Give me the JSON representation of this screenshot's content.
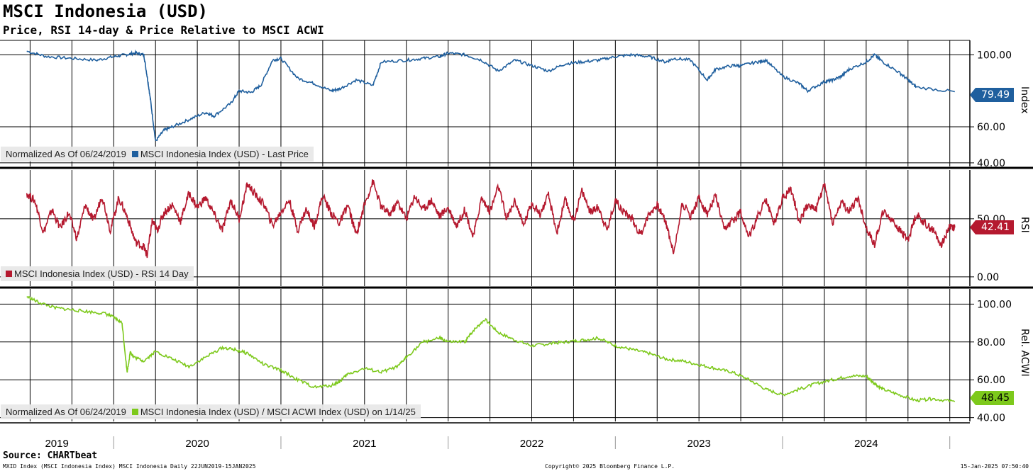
{
  "title": "MSCI Indonesia (USD)",
  "subtitle": "Price, RSI 14-day & Price Relative to MSCI ACWI",
  "source": "Source: CHARTbeat",
  "footer": {
    "left": "MXID Index (MSCI Indonesia Index) MSCI Indonesia  Daily 22JUN2019-15JAN2025",
    "center": "Copyright© 2025 Bloomberg Finance L.P.",
    "right": "15-Jan-2025 07:50:40"
  },
  "colors": {
    "price": "#1f5f9e",
    "rsi": "#b5192f",
    "rel": "#7dc91c",
    "grid": "#000000"
  },
  "chart_data": [
    {
      "type": "line",
      "panel": "price",
      "axis_title": "Index",
      "ylim": [
        38,
        108
      ],
      "yticks": [
        "100.00",
        "60.00",
        "40.00"
      ],
      "ytick_values": [
        100,
        60,
        40
      ],
      "legend": {
        "prefix": "Normalized As Of 06/24/2019",
        "series_label": "MSCI Indonesia Index (USD) - Last Price"
      },
      "last_value_label": "79.49",
      "series": [
        {
          "name": "MSCI Indonesia Index (USD) - Last Price",
          "x": [
            2019.48,
            2019.6,
            2019.75,
            2019.9,
            2020.0,
            2020.07,
            2020.13,
            2020.18,
            2020.2,
            2020.22,
            2020.25,
            2020.3,
            2020.35,
            2020.45,
            2020.55,
            2020.6,
            2020.7,
            2020.75,
            2020.82,
            2020.88,
            2020.95,
            2021.0,
            2021.1,
            2021.2,
            2021.3,
            2021.35,
            2021.45,
            2021.55,
            2021.6,
            2021.75,
            2021.85,
            2021.95,
            2022.0,
            2022.1,
            2022.2,
            2022.3,
            2022.4,
            2022.5,
            2022.6,
            2022.7,
            2022.8,
            2022.9,
            2023.0,
            2023.1,
            2023.2,
            2023.3,
            2023.35,
            2023.45,
            2023.55,
            2023.6,
            2023.7,
            2023.75,
            2023.85,
            2023.9,
            2024.0,
            2024.1,
            2024.15,
            2024.25,
            2024.3,
            2024.35,
            2024.4,
            2024.5,
            2024.55,
            2024.6,
            2024.7,
            2024.75,
            2024.8,
            2025.03
          ],
          "values": [
            102,
            99,
            98,
            97,
            99,
            100,
            101,
            100,
            88,
            75,
            52,
            58,
            60,
            64,
            68,
            66,
            73,
            80,
            79,
            83,
            97,
            98,
            87,
            84,
            80,
            81,
            86,
            83,
            96,
            97,
            98,
            99,
            101,
            100,
            97,
            91,
            97,
            94,
            91,
            95,
            96,
            97,
            99,
            100,
            99,
            96,
            98,
            97,
            86,
            92,
            94,
            94,
            96,
            97,
            88,
            84,
            80,
            85,
            86,
            88,
            92,
            96,
            100,
            96,
            90,
            86,
            82,
            79.49
          ]
        }
      ]
    },
    {
      "type": "line",
      "panel": "rsi",
      "axis_title": "RSI",
      "ylim": [
        -8,
        92
      ],
      "yticks": [
        "50.00",
        "0.00"
      ],
      "ytick_values": [
        50,
        0
      ],
      "legend": {
        "prefix": "",
        "series_label": "MSCI Indonesia Index (USD) - RSI 14 Day"
      },
      "last_value_label": "42.41",
      "series": [
        {
          "name": "MSCI Indonesia Index (USD) - RSI 14 Day",
          "x": [
            2019.48,
            2019.53,
            2019.58,
            2019.63,
            2019.68,
            2019.73,
            2019.78,
            2019.83,
            2019.88,
            2019.93,
            2019.98,
            2020.03,
            2020.08,
            2020.13,
            2020.18,
            2020.2,
            2020.23,
            2020.26,
            2020.3,
            2020.35,
            2020.4,
            2020.45,
            2020.5,
            2020.55,
            2020.6,
            2020.65,
            2020.7,
            2020.75,
            2020.8,
            2020.85,
            2020.9,
            2020.95,
            2021.0,
            2021.05,
            2021.1,
            2021.15,
            2021.2,
            2021.25,
            2021.3,
            2021.35,
            2021.4,
            2021.45,
            2021.5,
            2021.55,
            2021.6,
            2021.65,
            2021.7,
            2021.75,
            2021.8,
            2021.85,
            2021.9,
            2021.95,
            2022.0,
            2022.05,
            2022.1,
            2022.15,
            2022.2,
            2022.25,
            2022.3,
            2022.35,
            2022.4,
            2022.45,
            2022.5,
            2022.55,
            2022.6,
            2022.65,
            2022.7,
            2022.75,
            2022.8,
            2022.85,
            2022.9,
            2022.95,
            2023.0,
            2023.05,
            2023.1,
            2023.15,
            2023.2,
            2023.25,
            2023.3,
            2023.35,
            2023.4,
            2023.45,
            2023.5,
            2023.55,
            2023.6,
            2023.65,
            2023.7,
            2023.75,
            2023.8,
            2023.85,
            2023.9,
            2023.95,
            2024.0,
            2024.05,
            2024.1,
            2024.15,
            2024.2,
            2024.25,
            2024.3,
            2024.35,
            2024.4,
            2024.45,
            2024.5,
            2024.55,
            2024.6,
            2024.65,
            2024.7,
            2024.75,
            2024.8,
            2024.85,
            2024.9,
            2024.95,
            2025.0,
            2025.03
          ],
          "values": [
            72,
            65,
            38,
            58,
            42,
            55,
            33,
            62,
            48,
            70,
            40,
            68,
            52,
            30,
            26,
            18,
            48,
            40,
            55,
            62,
            48,
            72,
            60,
            68,
            54,
            40,
            66,
            50,
            80,
            70,
            62,
            44,
            56,
            66,
            40,
            58,
            44,
            70,
            55,
            46,
            62,
            36,
            62,
            82,
            60,
            54,
            64,
            50,
            70,
            58,
            66,
            52,
            60,
            44,
            58,
            34,
            68,
            56,
            78,
            50,
            66,
            44,
            64,
            54,
            70,
            38,
            66,
            48,
            74,
            56,
            60,
            40,
            66,
            56,
            50,
            36,
            54,
            62,
            48,
            20,
            64,
            52,
            68,
            54,
            70,
            40,
            48,
            56,
            34,
            52,
            66,
            46,
            68,
            76,
            48,
            62,
            58,
            80,
            46,
            64,
            56,
            68,
            42,
            28,
            56,
            50,
            40,
            32,
            54,
            46,
            40,
            28,
            44,
            42.41
          ]
        }
      ]
    },
    {
      "type": "line",
      "panel": "relative",
      "axis_title": "Rel. ACWI",
      "ylim": [
        38,
        108
      ],
      "yticks": [
        "100.00",
        "80.00",
        "60.00",
        "40.00"
      ],
      "ytick_values": [
        100,
        80,
        60,
        40
      ],
      "legend": {
        "prefix": "Normalized As Of 06/24/2019",
        "series_label": "MSCI Indonesia Index (USD) / MSCI ACWI Index (USD) on 1/14/25"
      },
      "last_value_label": "48.45",
      "series": [
        {
          "name": "MSCI Indonesia Index (USD) / MSCI ACWI Index (USD) on 1/14/25",
          "x": [
            2019.48,
            2019.55,
            2019.65,
            2019.75,
            2019.85,
            2019.95,
            2020.0,
            2020.05,
            2020.08,
            2020.1,
            2020.12,
            2020.18,
            2020.25,
            2020.35,
            2020.45,
            2020.55,
            2020.65,
            2020.72,
            2020.8,
            2020.9,
            2021.0,
            2021.1,
            2021.2,
            2021.3,
            2021.35,
            2021.4,
            2021.5,
            2021.6,
            2021.7,
            2021.75,
            2021.85,
            2021.95,
            2022.0,
            2022.1,
            2022.15,
            2022.22,
            2022.3,
            2022.4,
            2022.5,
            2022.6,
            2022.7,
            2022.8,
            2022.9,
            2023.0,
            2023.1,
            2023.2,
            2023.3,
            2023.4,
            2023.5,
            2023.6,
            2023.7,
            2023.8,
            2023.9,
            2024.0,
            2024.1,
            2024.2,
            2024.3,
            2024.4,
            2024.5,
            2024.55,
            2024.6,
            2024.7,
            2024.8,
            2024.9,
            2025.03
          ],
          "values": [
            104,
            101,
            98,
            97,
            96,
            95,
            93,
            90,
            64,
            75,
            72,
            70,
            75,
            71,
            67,
            72,
            77,
            76,
            74,
            68,
            65,
            60,
            56,
            57,
            59,
            63,
            66,
            64,
            67,
            72,
            80,
            82,
            80,
            80,
            86,
            92,
            85,
            81,
            78,
            79,
            80,
            81,
            82,
            78,
            76,
            74,
            71,
            70,
            68,
            66,
            64,
            60,
            55,
            52,
            55,
            58,
            60,
            62,
            62,
            58,
            55,
            52,
            49,
            50,
            48.45
          ]
        }
      ]
    }
  ],
  "x_axis": {
    "tick_labels": [
      "2019",
      "2020",
      "2021",
      "2022",
      "2023",
      "2024"
    ]
  }
}
